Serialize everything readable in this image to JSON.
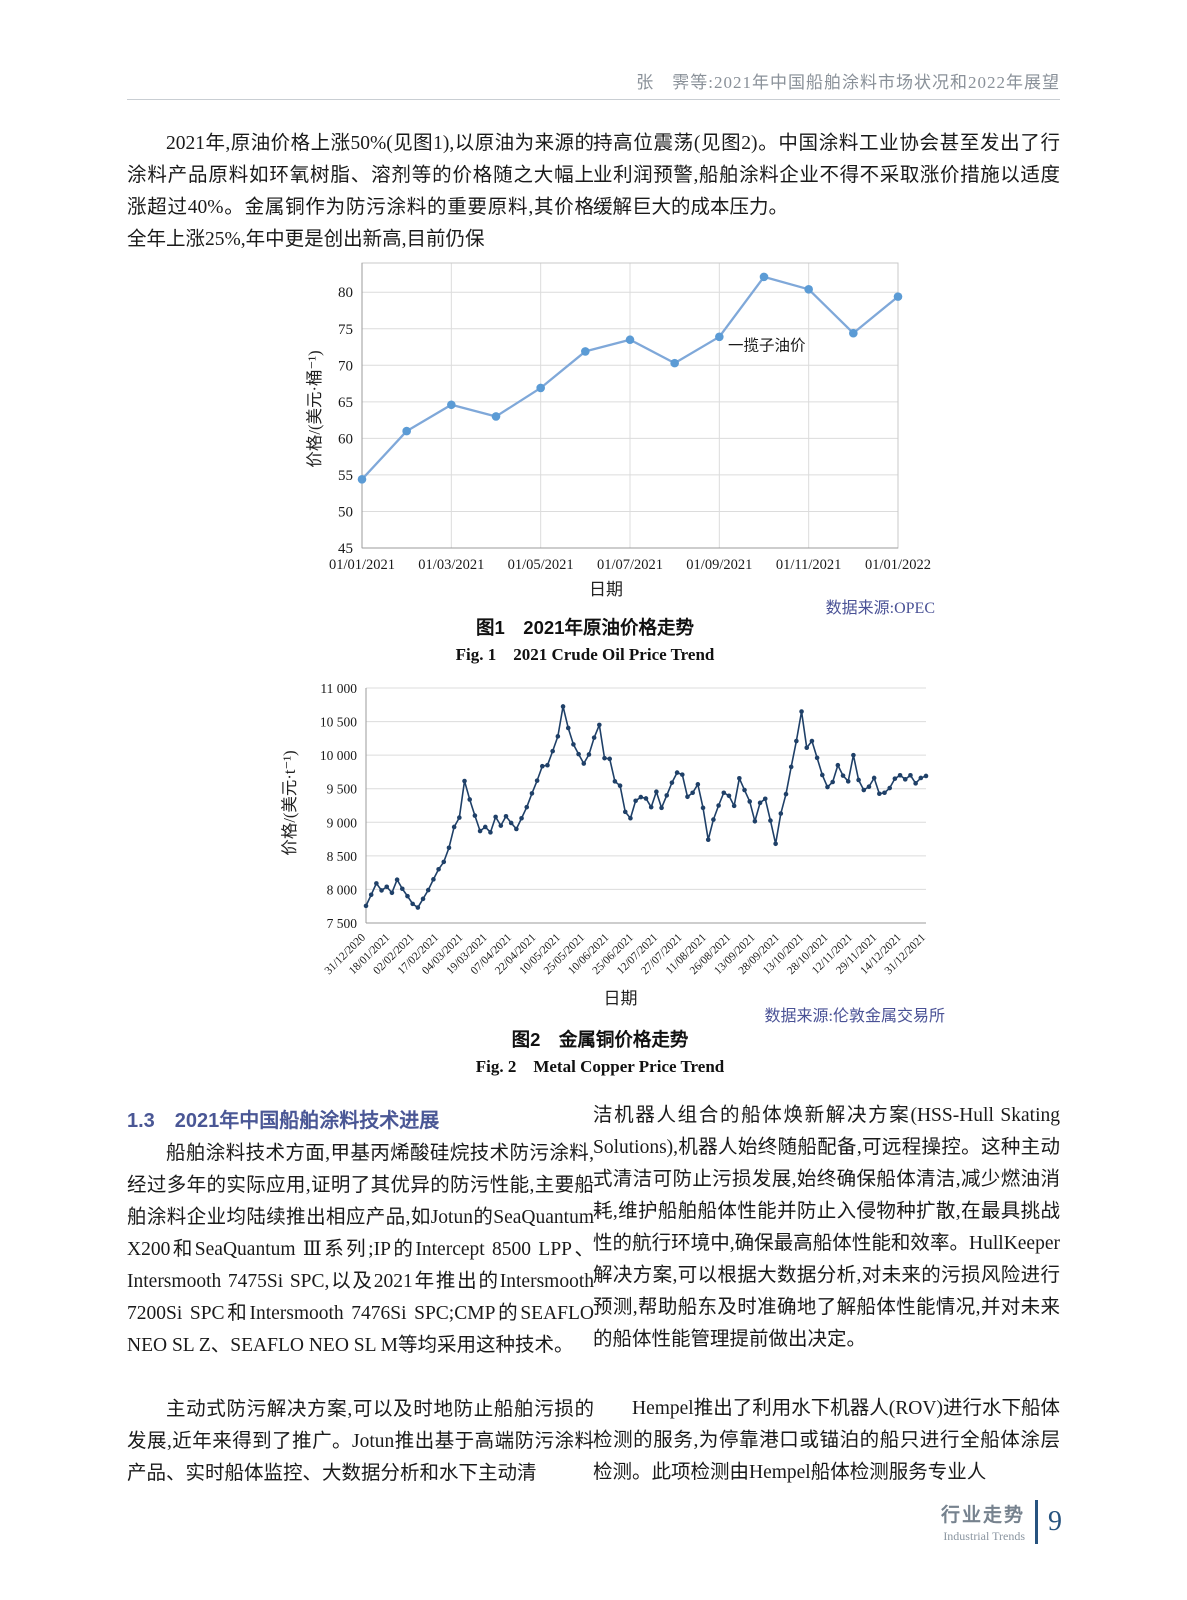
{
  "page": {
    "header": "张　霁等:2021年中国船舶涂料市场状况和2022年展望",
    "footer": {
      "cn": "行业走势",
      "en": "Industrial Trends",
      "page_number": "9"
    }
  },
  "intro": {
    "left": "2021年,原油价格上涨50%(见图1),以原油为来源的涂料产品原料如环氧树脂、溶剂等的价格随之大幅上涨超过40%。金属铜作为防污涂料的重要原料,其价格全年上涨25%,年中更是创出新高,目前仍保",
    "right": "持高位震荡(见图2)。中国涂料工业协会甚至发出了行业利润预警,船舶涂料企业不得不采取涨价措施以适度缓解巨大的成本压力。"
  },
  "section": {
    "heading": "1.3　2021年中国船舶涂料技术进展",
    "left_p1": "船舶涂料技术方面,甲基丙烯酸硅烷技术防污涂料,经过多年的实际应用,证明了其优异的防污性能,主要船舶涂料企业均陆续推出相应产品,如Jotun的SeaQuantum X200和SeaQuantum Ⅲ系列;IP的Intercept 8500 LPP、Intersmooth 7475Si SPC,以及2021年推出的Intersmooth 7200Si SPC和Intersmooth 7476Si SPC;CMP的SEAFLO NEO SL Z、SEAFLO NEO SL M等均采用这种技术。",
    "left_p2": "主动式防污解决方案,可以及时地防止船舶污损的发展,近年来得到了推广。Jotun推出基于高端防污涂料产品、实时船体监控、大数据分析和水下主动清",
    "right_p1": "洁机器人组合的船体焕新解决方案(HSS-Hull Skating Solutions),机器人始终随船配备,可远程操控。这种主动式清洁可防止污损发展,始终确保船体清洁,减少燃油消耗,维护船舶船体性能并防止入侵物种扩散,在最具挑战性的航行环境中,确保最高船体性能和效率。HullKeeper解决方案,可以根据大数据分析,对未来的污损风险进行预测,帮助船东及时准确地了解船体性能情况,并对未来的船体性能管理提前做出决定。",
    "right_p2": "Hempel推出了利用水下机器人(ROV)进行水下船体检测的服务,为停靠港口或锚泊的船只进行全船体涂层检测。此项检测由Hempel船体检测服务专业人"
  },
  "colors": {
    "heading_blue": "#4a5795",
    "source_purple": "#4a5296",
    "footer_blue": "#27537f",
    "oil_line": "#7fa8d9",
    "oil_marker": "#5b9bd5",
    "oil_legend_cyan": "#31b0d5",
    "copper_navy": "#1f4068",
    "gridline_gray": "#dcdcdc"
  },
  "chart_data": [
    {
      "type": "line",
      "title_cn": "图1　2021年原油价格走势",
      "title_en": "Fig. 1　2021 Crude Oil Price Trend",
      "source": "数据来源:OPEC",
      "xlabel": "日期",
      "ylabel": "价格/(美元·桶⁻¹)",
      "legend": "一揽子油价",
      "x": [
        "01/01/2021",
        "01/02/2021",
        "01/03/2021",
        "01/04/2021",
        "01/05/2021",
        "01/06/2021",
        "01/07/2021",
        "01/08/2021",
        "01/09/2021",
        "01/10/2021",
        "01/11/2021",
        "01/12/2021",
        "01/01/2022"
      ],
      "values": [
        54.4,
        61.0,
        64.6,
        63.0,
        66.9,
        71.9,
        73.5,
        70.3,
        73.9,
        82.1,
        80.4,
        74.4,
        79.4
      ],
      "x_tick_labels": [
        "01/01/2021",
        "01/03/2021",
        "01/05/2021",
        "01/07/2021",
        "01/09/2021",
        "01/11/2021",
        "01/01/2022"
      ],
      "yticks": [
        45,
        50,
        55,
        60,
        65,
        70,
        75,
        80
      ],
      "ylim": [
        45,
        84
      ],
      "grid": "horizontal and vertical",
      "legend_position": "inside right-center",
      "line_color": "#7fa8d9",
      "marker_color": "#5b9bd5",
      "legend_color": "#31b0d5"
    },
    {
      "type": "line",
      "title_cn": "图2　金属铜价格走势",
      "title_en": "Fig. 2　Metal Copper Price Trend",
      "source": "数据来源:伦敦金属交易所",
      "xlabel": "日期",
      "ylabel": "价格/(美元·t⁻¹)",
      "x_tick_labels": [
        "31/12/2020",
        "18/01/2021",
        "02/02/2021",
        "17/02/2021",
        "04/03/2021",
        "19/03/2021",
        "07/04/2021",
        "22/04/2021",
        "10/05/2021",
        "25/05/2021",
        "10/06/2021",
        "25/06/2021",
        "12/07/2021",
        "27/07/2021",
        "11/08/2021",
        "26/08/2021",
        "13/09/2021",
        "28/09/2021",
        "13/10/2021",
        "28/10/2021",
        "12/11/2021",
        "29/11/2021",
        "14/12/2021",
        "31/12/2021"
      ],
      "values": [
        7755,
        7920,
        8090,
        7985,
        8040,
        7950,
        8145,
        8010,
        7900,
        7785,
        7730,
        7860,
        7990,
        8150,
        8300,
        8410,
        8620,
        8930,
        9070,
        9615,
        9340,
        9100,
        8870,
        8930,
        8850,
        9080,
        8950,
        9090,
        8990,
        8900,
        9060,
        9225,
        9430,
        9620,
        9835,
        9850,
        10060,
        10280,
        10725,
        10405,
        10160,
        10015,
        9875,
        10010,
        10260,
        10450,
        9955,
        9945,
        9610,
        9545,
        9155,
        9060,
        9320,
        9375,
        9355,
        9225,
        9455,
        9215,
        9400,
        9590,
        9740,
        9710,
        9380,
        9440,
        9565,
        9215,
        8740,
        9040,
        9250,
        9440,
        9395,
        9245,
        9655,
        9480,
        9310,
        9015,
        9290,
        9350,
        9025,
        8680,
        9130,
        9420,
        9825,
        10210,
        10650,
        10110,
        10210,
        9960,
        9705,
        9525,
        9600,
        9850,
        9695,
        9610,
        10000,
        9630,
        9480,
        9530,
        9660,
        9425,
        9440,
        9510,
        9650,
        9700,
        9640,
        9700,
        9580,
        9660,
        9690
      ],
      "yticks": [
        7500,
        8000,
        8500,
        9000,
        9500,
        10000,
        10500,
        11000
      ],
      "ytick_labels": [
        "7 500",
        "8 000",
        "8 500",
        "9 000",
        "9 500",
        "10 000",
        "10 500",
        "11 000"
      ],
      "ylim": [
        7500,
        11000
      ],
      "grid": "horizontal only",
      "line_color": "#1f4068",
      "marker_color": "#1f4068"
    }
  ]
}
